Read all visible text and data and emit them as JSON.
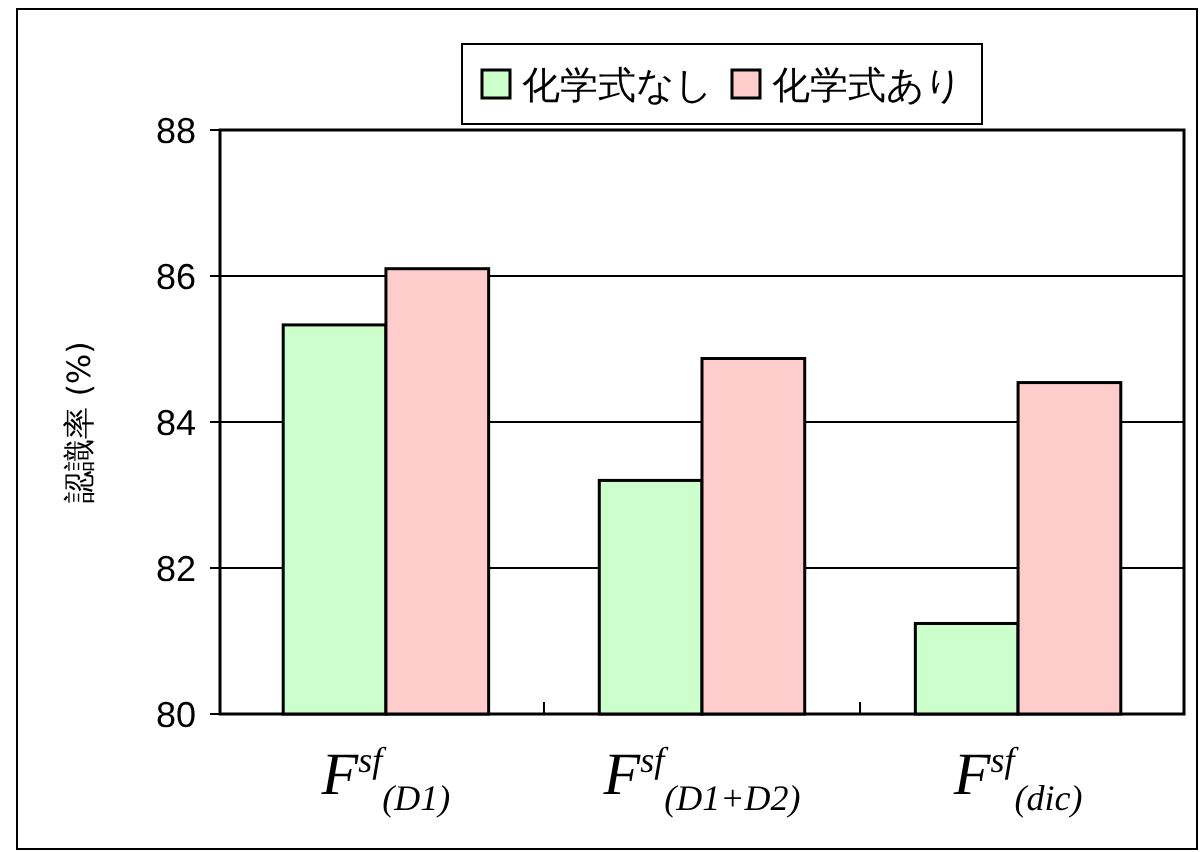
{
  "chart_data": {
    "type": "bar",
    "ylabel": "認識率 (%)",
    "categories": [
      "F$^{sf}$$_{(D1)}$",
      "F$^{sf}$$_{(D1+D2)}$",
      "F$^{sf}$$_{(dic)}$"
    ],
    "series": [
      {
        "name": "化学式なし",
        "color": "#ccffcc",
        "values": [
          85.33,
          83.2,
          81.24
        ]
      },
      {
        "name": "化学式あり",
        "color": "#ffcccc",
        "values": [
          86.1,
          84.87,
          84.54
        ]
      }
    ],
    "ylim": [
      80,
      88
    ],
    "yticks": [
      80,
      82,
      84,
      86,
      88
    ],
    "grid": "y",
    "legend": "top"
  }
}
